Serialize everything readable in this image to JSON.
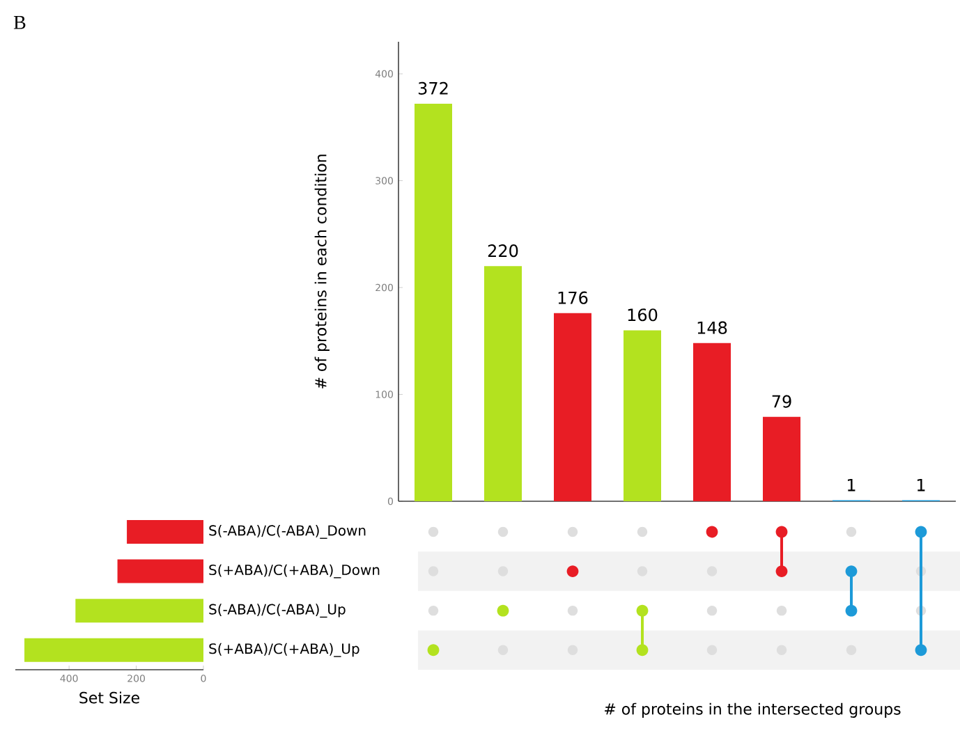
{
  "chart_data": [
    {
      "type": "bar",
      "ylabel": "# of proteins in each condition",
      "xlabel": "# of proteins in the intersected groups",
      "categories": [
        null,
        null,
        null,
        null,
        null,
        null,
        null,
        null
      ],
      "values": [
        372,
        220,
        176,
        160,
        148,
        79,
        1,
        1
      ],
      "colors": [
        "#b3e21f",
        "#b3e21f",
        "#e81d25",
        "#b3e21f",
        "#e81d25",
        "#e81d25",
        "#1d9ad8",
        "#1d9ad8"
      ],
      "ylim": [
        0,
        430
      ],
      "yticks": [
        0,
        100,
        200,
        300,
        400
      ],
      "data_labels": true,
      "annotations": [
        "B"
      ]
    },
    {
      "type": "bar",
      "orientation": "horizontal",
      "xlabel": "Set Size",
      "categories": [
        "S(-ABA)/C(-ABA)_Down",
        "S(+ABA)/C(+ABA)_Down",
        "S(-ABA)/C(-ABA)_Up",
        "S(+ABA)/C(+ABA)_Up"
      ],
      "values": [
        228,
        256,
        381,
        533
      ],
      "colors": [
        "#e81d25",
        "#e81d25",
        "#b3e21f",
        "#b3e21f"
      ],
      "xlim": [
        560,
        0
      ],
      "xticks": [
        0,
        200,
        400
      ]
    }
  ]
}
